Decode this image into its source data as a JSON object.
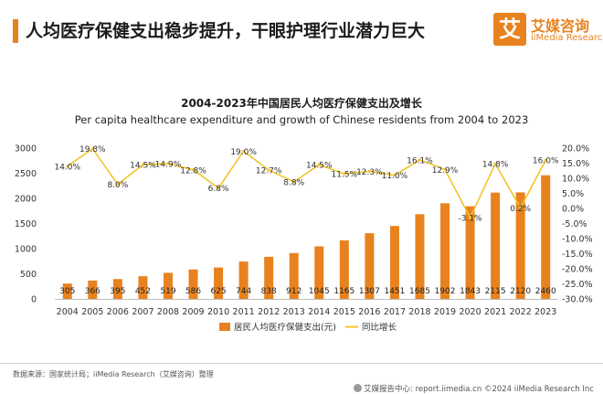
{
  "header": {
    "title": "人均医疗保健支出稳步提升，干眼护理行业潜力巨大",
    "logo_mark": "艾",
    "logo_cn": "艾媒咨询",
    "logo_en": "iiMedia Research"
  },
  "colors": {
    "bar": "#e8821e",
    "line": "#f2c42c",
    "accent": "#e8821e"
  },
  "chart_data": {
    "type": "bar",
    "title": "2004-2023年中国居民人均医疗保健支出及增长",
    "subtitle": "Per capita healthcare expenditure and growth of Chinese residents from 2004 to 2023",
    "categories": [
      "2004",
      "2005",
      "2006",
      "2007",
      "2008",
      "2009",
      "2010",
      "2011",
      "2012",
      "2013",
      "2014",
      "2015",
      "2016",
      "2017",
      "2018",
      "2019",
      "2020",
      "2021",
      "2022",
      "2023"
    ],
    "series": [
      {
        "name": "居民人均医疗保健支出(元)",
        "type": "bar",
        "axis": "left",
        "values": [
          305,
          366,
          395,
          452,
          519,
          586,
          625,
          744,
          838,
          912,
          1045,
          1165,
          1307,
          1451,
          1685,
          1902,
          1843,
          2115,
          2120,
          2460
        ],
        "labels": [
          "305",
          "366",
          "395",
          "452",
          "519",
          "586",
          "625",
          "744",
          "838",
          "912",
          "1045",
          "1165",
          "1307",
          "1451",
          "1685",
          "1902",
          "1843",
          "2115",
          "2120",
          "2460"
        ]
      },
      {
        "name": "同比增长",
        "type": "line",
        "axis": "right",
        "values": [
          14.0,
          19.8,
          8.0,
          14.5,
          14.9,
          12.8,
          6.8,
          19.0,
          12.7,
          8.8,
          14.5,
          11.5,
          12.3,
          11.0,
          16.1,
          12.9,
          -3.1,
          14.8,
          0.2,
          16.0
        ],
        "labels": [
          "14.0%",
          "19.8%",
          "8.0%",
          "14.5%",
          "14.9%",
          "12.8%",
          "6.8%",
          "19.0%",
          "12.7%",
          "8.8%",
          "14.5%",
          "11.5%",
          "12.3%",
          "11.0%",
          "16.1%",
          "12.9%",
          "-3.1%",
          "14.8%",
          "0.2%",
          "16.0%"
        ]
      }
    ],
    "ylim_left": [
      0,
      3000
    ],
    "yticks_left": [
      "0",
      "500",
      "1000",
      "1500",
      "2000",
      "2500",
      "3000"
    ],
    "ylim_right": [
      -30,
      20
    ],
    "yticks_right": [
      "-30.0%",
      "-25.0%",
      "-20.0%",
      "-15.0%",
      "-10.0%",
      "-5.0%",
      "0.0%",
      "5.0%",
      "10.0%",
      "15.0%",
      "20.0%"
    ],
    "grid": false,
    "legend": "bottom"
  },
  "footer": {
    "source": "数据来源：国家统计局；iiMedia Research（艾媒咨询）整理",
    "right": "艾媒报告中心: report.iimedia.cn   ©2024  iiMedia Research  Inc"
  }
}
